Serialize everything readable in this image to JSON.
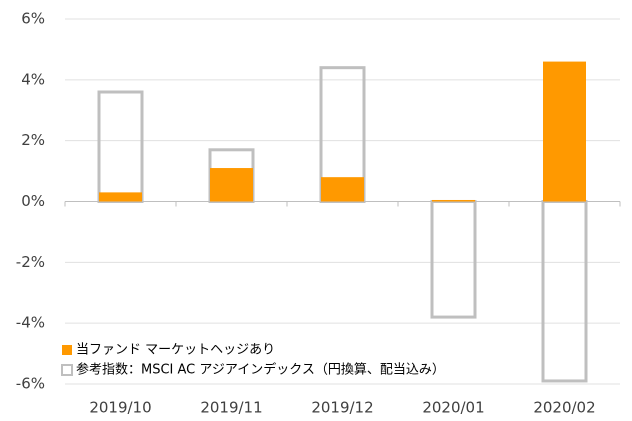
{
  "chart_data": {
    "type": "bar",
    "categories": [
      "2019/10",
      "2019/11",
      "2019/12",
      "2020/01",
      "2020/02"
    ],
    "series": [
      {
        "name": "当ファンド マーケットヘッジあり",
        "color": "#ff9900",
        "style": "filled",
        "values": [
          0.3,
          1.1,
          0.8,
          0.05,
          4.6
        ]
      },
      {
        "name": "参考指数：MSCI AC アジアインデックス（円換算、配当込み）",
        "color": "#bfbfbf",
        "style": "outline",
        "values": [
          3.6,
          1.7,
          4.4,
          -3.8,
          -5.9
        ]
      }
    ],
    "ylim": [
      -6,
      6
    ],
    "yticks": [
      {
        "value": -6,
        "label": "-6%"
      },
      {
        "value": -4,
        "label": "-4%"
      },
      {
        "value": -2,
        "label": "-2%"
      },
      {
        "value": 0,
        "label": "0%"
      },
      {
        "value": 2,
        "label": "2%"
      },
      {
        "value": 4,
        "label": "4%"
      },
      {
        "value": 6,
        "label": "6%"
      }
    ],
    "grid": true,
    "legend": "lower left"
  }
}
